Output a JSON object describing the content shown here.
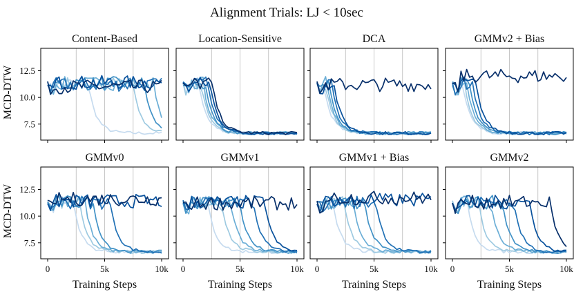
{
  "chart_data": {
    "type": "line",
    "title": "Alignment Trials: LJ < 10sec",
    "xlabel": "Training Steps",
    "ylabel": "MCD-DTW",
    "xlim": [
      0,
      10
    ],
    "ylim": [
      6.0,
      14.6
    ],
    "xticks": [
      0,
      5,
      10
    ],
    "xtick_labels": [
      "0",
      "5k",
      "10k"
    ],
    "yticks": [
      7.5,
      10.0,
      12.5
    ],
    "ytick_labels": [
      "7.5",
      "10.0",
      "12.5"
    ],
    "vgrid": [
      2.5,
      5,
      7.5
    ],
    "palette": [
      "#c6dbef",
      "#9ecae1",
      "#6baed6",
      "#4292c6",
      "#2171b5",
      "#08519c",
      "#08306b"
    ],
    "panels": [
      {
        "title": "Content-Based",
        "series": [
          {
            "drop": 3.6,
            "fail": false
          },
          {
            "drop": 7.5,
            "fail": false
          },
          {
            "drop": 9.3,
            "fail": false
          },
          {
            "drop": 8.5,
            "fail": false
          },
          {
            "drop": 0,
            "fail": true,
            "level": 11.2
          },
          {
            "drop": 0,
            "fail": true,
            "level": 11.4
          },
          {
            "drop": 0,
            "fail": true,
            "level": 11.0
          }
        ]
      },
      {
        "title": "Location-Sensitive",
        "series": [
          {
            "drop": 1.4,
            "fail": false
          },
          {
            "drop": 1.6,
            "fail": false
          },
          {
            "drop": 1.8,
            "fail": false
          },
          {
            "drop": 2.0,
            "fail": false
          },
          {
            "drop": 2.2,
            "fail": false
          },
          {
            "drop": 2.4,
            "fail": false
          },
          {
            "drop": 2.6,
            "fail": false
          }
        ]
      },
      {
        "title": "DCA",
        "series": [
          {
            "drop": 0.6,
            "fail": false
          },
          {
            "drop": 0.8,
            "fail": false
          },
          {
            "drop": 0.9,
            "fail": false
          },
          {
            "drop": 1.1,
            "fail": false
          },
          {
            "drop": 1.3,
            "fail": false
          },
          {
            "drop": 1.5,
            "fail": false
          },
          {
            "drop": 0,
            "fail": true,
            "level": 11.2
          }
        ]
      },
      {
        "title": "GMMv2 + Bias",
        "series": [
          {
            "drop": 0.9,
            "fail": false
          },
          {
            "drop": 1.1,
            "fail": false
          },
          {
            "drop": 1.3,
            "fail": false
          },
          {
            "drop": 1.5,
            "fail": false
          },
          {
            "drop": 1.8,
            "fail": false
          },
          {
            "drop": 2.1,
            "fail": false
          },
          {
            "drop": 0,
            "fail": true,
            "level": 12.0
          }
        ]
      },
      {
        "title": "GMMv0",
        "series": [
          {
            "drop": 2.3,
            "fail": false
          },
          {
            "drop": 2.8,
            "fail": false
          },
          {
            "drop": 3.3,
            "fail": false
          },
          {
            "drop": 4.0,
            "fail": false
          },
          {
            "drop": 5.5,
            "fail": false
          },
          {
            "drop": 0,
            "fail": true,
            "level": 11.4
          },
          {
            "drop": 0,
            "fail": true,
            "level": 11.6
          }
        ]
      },
      {
        "title": "GMMv1",
        "series": [
          {
            "drop": 2.2,
            "fail": false
          },
          {
            "drop": 3.4,
            "fail": false
          },
          {
            "drop": 4.2,
            "fail": false
          },
          {
            "drop": 5.0,
            "fail": false
          },
          {
            "drop": 6.2,
            "fail": false
          },
          {
            "drop": 7.2,
            "fail": false
          },
          {
            "drop": 0,
            "fail": true,
            "level": 11.2
          }
        ]
      },
      {
        "title": "GMMv1 + Bias",
        "series": [
          {
            "drop": 1.4,
            "fail": false
          },
          {
            "drop": 2.4,
            "fail": false
          },
          {
            "drop": 3.2,
            "fail": false
          },
          {
            "drop": 4.2,
            "fail": false
          },
          {
            "drop": 5.2,
            "fail": false
          },
          {
            "drop": 0,
            "fail": true,
            "level": 11.5
          },
          {
            "drop": 0,
            "fail": true,
            "level": 11.7
          }
        ]
      },
      {
        "title": "GMMv2",
        "series": [
          {
            "drop": 1.3,
            "fail": false
          },
          {
            "drop": 2.3,
            "fail": false
          },
          {
            "drop": 3.4,
            "fail": false
          },
          {
            "drop": 4.4,
            "fail": false
          },
          {
            "drop": 5.4,
            "fail": false
          },
          {
            "drop": 6.8,
            "fail": false
          },
          {
            "drop": 8.6,
            "fail": false
          }
        ]
      }
    ]
  }
}
